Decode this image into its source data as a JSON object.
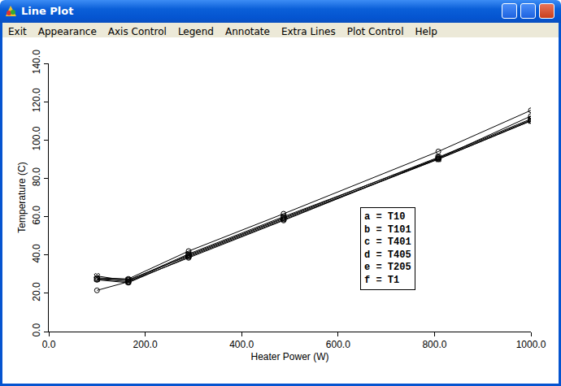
{
  "window": {
    "title": "Line Plot",
    "menu": [
      "Exit",
      "Appearance",
      "Axis Control",
      "Legend",
      "Annotate",
      "Extra Lines",
      "Plot Control",
      "Help"
    ]
  },
  "chart_data": {
    "type": "line",
    "x_label": "Heater Power (W)",
    "y_label": "Temperature (C)",
    "x": [
      100,
      165,
      290,
      487,
      808,
      1000
    ],
    "series": [
      {
        "name": "a = T10",
        "color": "#000000",
        "marker": "circle-open",
        "values": [
          28,
          27.5,
          42,
          61.5,
          94,
          115.5
        ]
      },
      {
        "name": "b = T101",
        "color": "#000000",
        "marker": "square-open",
        "values": [
          27.5,
          26,
          40,
          59.5,
          91,
          111
        ]
      },
      {
        "name": "c = T401",
        "color": "#000000",
        "marker": "x-open",
        "values": [
          29,
          26.5,
          40.5,
          60,
          90.5,
          110.5
        ]
      },
      {
        "name": "d = T405",
        "color": "#000000",
        "marker": "square-open",
        "values": [
          27.5,
          27,
          39.5,
          59,
          90,
          110
        ]
      },
      {
        "name": "e = T205",
        "color": "#000000",
        "marker": "circle-open",
        "values": [
          27,
          25.5,
          39,
          58.5,
          90,
          110
        ]
      },
      {
        "name": "f = T1",
        "color": "#000000",
        "marker": "circle-open",
        "values": [
          21.5,
          26,
          38.5,
          58,
          90.5,
          112.5
        ]
      }
    ],
    "xlim": [
      0,
      1000
    ],
    "xticks": [
      {
        "value": 0,
        "label": "0.0"
      },
      {
        "value": 200,
        "label": "200.0"
      },
      {
        "value": 400,
        "label": "400.0"
      },
      {
        "value": 600,
        "label": "600.0"
      },
      {
        "value": 800,
        "label": "800.0"
      },
      {
        "value": 1000,
        "label": "1000.0"
      }
    ],
    "ylim": [
      0,
      140
    ],
    "yticks": [
      {
        "value": 0,
        "label": "0.0"
      },
      {
        "value": 20,
        "label": "20.0"
      },
      {
        "value": 40,
        "label": "40.0"
      },
      {
        "value": 60,
        "label": "60.0"
      },
      {
        "value": 80,
        "label": "80.0"
      },
      {
        "value": 100,
        "label": "100.0"
      },
      {
        "value": 120,
        "label": "120.0"
      },
      {
        "value": 140,
        "label": "140.0"
      }
    ],
    "grid": false,
    "legend": "inside"
  }
}
